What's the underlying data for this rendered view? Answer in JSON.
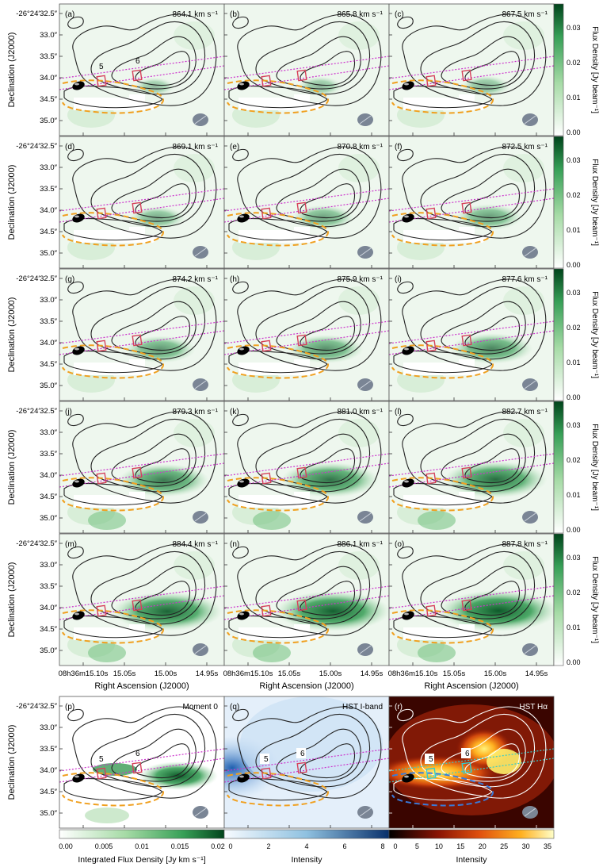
{
  "figure": {
    "dec_ticks": [
      "-26°24′32.5″",
      "33.0″",
      "33.5″",
      "34.0″",
      "34.5″",
      "35.0″"
    ],
    "ra_ticks": [
      "08h36m15.10s",
      "15.05s",
      "15.00s",
      "14.95s"
    ],
    "ylabel": "Declination (J2000)",
    "xlabel": "Right Ascension  (J2000)",
    "colorbar_label": "Flux Density [Jy beam⁻¹]",
    "colorbar_ticks": [
      "0.00",
      "0.01",
      "0.02",
      "0.03"
    ],
    "slit_labels": [
      "5",
      "6"
    ],
    "colors": {
      "green_map": "#1a7a3a",
      "slit_box": "#d6405a",
      "slit_line": "#cc33cc",
      "dashed": "#f0a020",
      "contour": "#222222",
      "beam": "#7a8595"
    }
  },
  "chart_data": [
    {
      "type": "heatmap",
      "panel": "(a)",
      "velocity": "864.1 km s⁻¹",
      "intensity": 0.1
    },
    {
      "type": "heatmap",
      "panel": "(b)",
      "velocity": "865.8 km s⁻¹",
      "intensity": 0.15
    },
    {
      "type": "heatmap",
      "panel": "(c)",
      "velocity": "867.5 km s⁻¹",
      "intensity": 0.2
    },
    {
      "type": "heatmap",
      "panel": "(d)",
      "velocity": "869.1 km s⁻¹",
      "intensity": 0.28
    },
    {
      "type": "heatmap",
      "panel": "(e)",
      "velocity": "870.8 km s⁻¹",
      "intensity": 0.35
    },
    {
      "type": "heatmap",
      "panel": "(f)",
      "velocity": "872.5 km s⁻¹",
      "intensity": 0.4
    },
    {
      "type": "heatmap",
      "panel": "(g)",
      "velocity": "874.2 km s⁻¹",
      "intensity": 0.45
    },
    {
      "type": "heatmap",
      "panel": "(h)",
      "velocity": "875.9 km s⁻¹",
      "intensity": 0.5
    },
    {
      "type": "heatmap",
      "panel": "(i)",
      "velocity": "877.6 km s⁻¹",
      "intensity": 0.58
    },
    {
      "type": "heatmap",
      "panel": "(j)",
      "velocity": "879.3 km s⁻¹",
      "intensity": 0.68
    },
    {
      "type": "heatmap",
      "panel": "(k)",
      "velocity": "881.0 km s⁻¹",
      "intensity": 0.76
    },
    {
      "type": "heatmap",
      "panel": "(l)",
      "velocity": "882.7 km s⁻¹",
      "intensity": 0.82
    },
    {
      "type": "heatmap",
      "panel": "(m)",
      "velocity": "884.4 km s⁻¹",
      "intensity": 0.9
    },
    {
      "type": "heatmap",
      "panel": "(n)",
      "velocity": "886.1 km s⁻¹",
      "intensity": 0.95
    },
    {
      "type": "heatmap",
      "panel": "(o)",
      "velocity": "887.8 km s⁻¹",
      "intensity": 1.0
    },
    {
      "type": "heatmap",
      "panel": "(p)",
      "title": "Moment 0",
      "colorbar_label": "Integrated Flux Density [Jy km s⁻¹]",
      "colorbar_ticks": [
        "0.00",
        "0.005",
        "0.01",
        "0.015",
        "0.02"
      ]
    },
    {
      "type": "heatmap",
      "panel": "(q)",
      "title": "HST I-band",
      "colorbar_label": "Intensity",
      "colorbar_ticks": [
        "0",
        "2",
        "4",
        "6",
        "8"
      ]
    },
    {
      "type": "heatmap",
      "panel": "(r)",
      "title": "HST Hα",
      "colorbar_label": "Intensity",
      "colorbar_ticks": [
        "0",
        "5",
        "10",
        "15",
        "20",
        "25",
        "30",
        "35"
      ]
    }
  ]
}
